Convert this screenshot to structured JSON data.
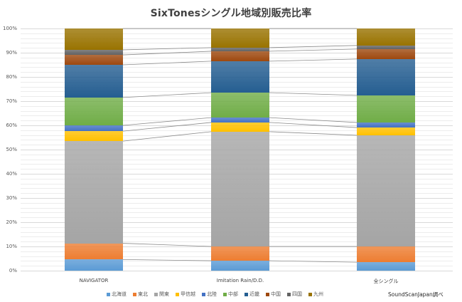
{
  "title": "SixTonesシングル地域別販売比率",
  "source": "SoundScanJapan調べ",
  "chart_data": {
    "type": "bar",
    "stacked": true,
    "normalized_percent": true,
    "title": "SixTonesシングル地域別販売比率",
    "xlabel": "",
    "ylabel": "",
    "ylim": [
      0,
      100
    ],
    "y_ticks": [
      "0%",
      "10%",
      "20%",
      "30%",
      "40%",
      "50%",
      "60%",
      "70%",
      "80%",
      "90%",
      "100%"
    ],
    "grid": true,
    "legend_position": "bottom",
    "series_lines": true,
    "categories": [
      "NAVIGATOR",
      "Imitation Rain/D.D.",
      "全シングル"
    ],
    "series": [
      {
        "name": "北海道",
        "color": "#5B9BD5",
        "values": [
          4.6,
          4.1,
          3.5
        ]
      },
      {
        "name": "東北",
        "color": "#ED7D31",
        "values": [
          6.7,
          5.9,
          6.5
        ]
      },
      {
        "name": "関東",
        "color": "#A5A5A5",
        "values": [
          42.2,
          47.4,
          45.9
        ]
      },
      {
        "name": "甲信越",
        "color": "#FFC000",
        "values": [
          4.1,
          3.8,
          3.2
        ]
      },
      {
        "name": "北陸",
        "color": "#4472C4",
        "values": [
          2.4,
          2.0,
          2.1
        ]
      },
      {
        "name": "中部",
        "color": "#70AD47",
        "values": [
          11.5,
          10.3,
          11.2
        ]
      },
      {
        "name": "近畿",
        "color": "#255E91",
        "values": [
          13.5,
          13.0,
          15.0
        ]
      },
      {
        "name": "中国",
        "color": "#9E480E",
        "values": [
          4.1,
          4.1,
          4.1
        ]
      },
      {
        "name": "四国",
        "color": "#636363",
        "values": [
          2.1,
          1.5,
          1.5
        ]
      },
      {
        "name": "九州",
        "color": "#997300",
        "values": [
          8.8,
          7.9,
          7.0
        ]
      }
    ]
  }
}
